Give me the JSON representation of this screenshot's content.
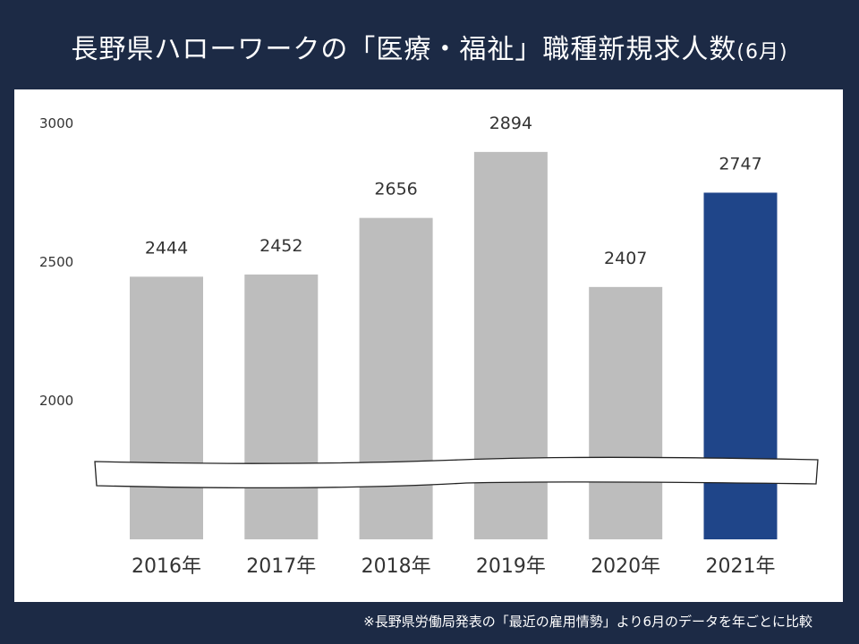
{
  "header": {
    "title_main": "長野県ハローワークの「医療・福祉」職種新規求人数",
    "title_paren": "(6月)"
  },
  "footnote": "※長野県労働局発表の「最近の雇用情勢」より6月のデータを年ごとに比較",
  "chart_data": {
    "type": "bar",
    "title": "長野県ハローワークの「医療・福祉」職種新規求人数(6月)",
    "categories": [
      "2016年",
      "2017年",
      "2018年",
      "2019年",
      "2020年",
      "2021年"
    ],
    "values": [
      2444,
      2452,
      2656,
      2894,
      2407,
      2747
    ],
    "yticks": [
      2000,
      2500,
      3000
    ],
    "ylim": [
      2000,
      3000
    ],
    "axis_break": true,
    "grid": false,
    "legend": "none",
    "colors": {
      "default_bar": "#bdbdbd",
      "highlight_bar": "#1f4589",
      "highlight_category": "2021年",
      "label": "#333333"
    }
  }
}
